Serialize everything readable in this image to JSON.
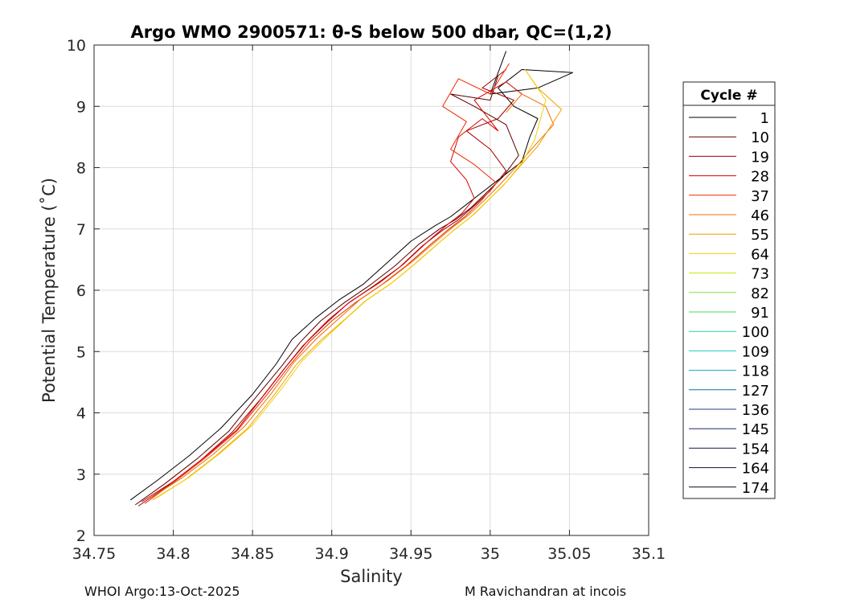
{
  "chart_data": {
    "type": "line",
    "title": "Argo WMO 2900571: θ-S below 500 dbar,  QC=(1,2)",
    "xlabel": "Salinity",
    "ylabel": "Potential Temperature (˚C)",
    "xlim": [
      34.75,
      35.1
    ],
    "ylim": [
      2,
      10
    ],
    "xticks": [
      34.75,
      34.8,
      34.85,
      34.9,
      34.95,
      35,
      35.05,
      35.1
    ],
    "xtick_labels": [
      "34.75",
      "34.8",
      "34.85",
      "34.9",
      "34.95",
      "35",
      "35.05",
      "35.1"
    ],
    "yticks": [
      2,
      3,
      4,
      5,
      6,
      7,
      8,
      9,
      10
    ],
    "ytick_labels": [
      "2",
      "3",
      "4",
      "5",
      "6",
      "7",
      "8",
      "9",
      "10"
    ],
    "grid": true,
    "legend_title": "Cycle #",
    "legend_position": "right",
    "legend": [
      {
        "label": "1",
        "color": "#000000"
      },
      {
        "label": "10",
        "color": "#5a0000"
      },
      {
        "label": "19",
        "color": "#a00000"
      },
      {
        "label": "28",
        "color": "#d40000"
      },
      {
        "label": "37",
        "color": "#f02800"
      },
      {
        "label": "46",
        "color": "#f07000"
      },
      {
        "label": "55",
        "color": "#f0a000"
      },
      {
        "label": "64",
        "color": "#f2d000"
      },
      {
        "label": "73",
        "color": "#c8e400"
      },
      {
        "label": "82",
        "color": "#80e040"
      },
      {
        "label": "91",
        "color": "#40d860"
      },
      {
        "label": "100",
        "color": "#20d8a0"
      },
      {
        "label": "109",
        "color": "#20c8c0"
      },
      {
        "label": "118",
        "color": "#10a8c0"
      },
      {
        "label": "127",
        "color": "#1070a0"
      },
      {
        "label": "136",
        "color": "#204080"
      },
      {
        "label": "145",
        "color": "#202870"
      },
      {
        "label": "154",
        "color": "#181850"
      },
      {
        "label": "164",
        "color": "#101038"
      },
      {
        "label": "174",
        "color": "#080820"
      }
    ],
    "series": [
      {
        "name": "1",
        "color": "#000000",
        "x": [
          34.773,
          34.79,
          34.81,
          34.83,
          34.85,
          34.865,
          34.875,
          34.89,
          34.905,
          34.92,
          34.935,
          34.95,
          34.965,
          34.975,
          34.985,
          34.995,
          35.005,
          35.02,
          35.025,
          35.03,
          35.015,
          35.005,
          35.02,
          35.052,
          35.03,
          35.0,
          35.01
        ],
        "y": [
          2.58,
          2.9,
          3.3,
          3.75,
          4.3,
          4.8,
          5.2,
          5.55,
          5.85,
          6.1,
          6.45,
          6.8,
          7.05,
          7.2,
          7.4,
          7.6,
          7.8,
          8.1,
          8.5,
          8.8,
          9.0,
          9.3,
          9.6,
          9.55,
          9.3,
          9.2,
          9.9
        ]
      },
      {
        "name": "10",
        "color": "#5a0000",
        "x": [
          34.776,
          34.795,
          34.815,
          34.835,
          34.852,
          34.868,
          34.88,
          34.893,
          34.908,
          34.925,
          34.94,
          34.955,
          34.968,
          34.978,
          34.988,
          34.998,
          35.008,
          35.018,
          35.01,
          34.99,
          34.975,
          35.0,
          35.005
        ],
        "y": [
          2.5,
          2.85,
          3.25,
          3.7,
          4.25,
          4.75,
          5.15,
          5.5,
          5.8,
          6.1,
          6.4,
          6.75,
          7.0,
          7.15,
          7.35,
          7.6,
          7.85,
          8.2,
          8.7,
          9.0,
          9.2,
          9.1,
          9.5
        ]
      },
      {
        "name": "19",
        "color": "#a00000",
        "x": [
          34.778,
          34.797,
          34.817,
          34.837,
          34.855,
          34.87,
          34.882,
          34.896,
          34.91,
          34.927,
          34.943,
          34.957,
          34.97,
          34.98,
          34.99,
          35.0,
          35.01,
          35.0,
          34.985,
          35.005,
          35.015,
          34.995,
          35.01
        ],
        "y": [
          2.48,
          2.82,
          3.22,
          3.68,
          4.22,
          4.72,
          5.1,
          5.45,
          5.78,
          6.08,
          6.38,
          6.72,
          6.98,
          7.15,
          7.38,
          7.62,
          7.95,
          8.3,
          8.6,
          8.8,
          9.1,
          9.3,
          9.6
        ]
      },
      {
        "name": "28",
        "color": "#d40000",
        "x": [
          34.78,
          34.8,
          34.82,
          34.84,
          34.857,
          34.872,
          34.885,
          34.898,
          34.912,
          34.93,
          34.945,
          34.96,
          34.972,
          34.982,
          34.99,
          34.985,
          34.975,
          34.98,
          34.995,
          35.005,
          34.99,
          35.01,
          35.02
        ],
        "y": [
          2.55,
          2.88,
          3.28,
          3.72,
          4.28,
          4.78,
          5.18,
          5.52,
          5.82,
          6.12,
          6.42,
          6.78,
          7.05,
          7.25,
          7.5,
          7.8,
          8.1,
          8.5,
          8.8,
          8.6,
          9.1,
          9.4,
          9.2
        ]
      },
      {
        "name": "37",
        "color": "#f02800",
        "x": [
          34.782,
          34.8,
          34.82,
          34.84,
          34.858,
          34.873,
          34.886,
          34.9,
          34.915,
          34.932,
          34.947,
          34.962,
          34.974,
          34.984,
          34.994,
          35.004,
          34.99,
          34.975,
          34.985,
          34.97,
          34.98,
          35.0,
          35.012
        ],
        "y": [
          2.52,
          2.86,
          3.26,
          3.7,
          4.26,
          4.76,
          5.16,
          5.5,
          5.8,
          6.1,
          6.4,
          6.74,
          7.0,
          7.2,
          7.45,
          7.75,
          8.05,
          8.3,
          8.75,
          9.0,
          9.45,
          9.2,
          9.7
        ]
      },
      {
        "name": "46",
        "color": "#f07000",
        "x": [
          34.785,
          34.805,
          34.825,
          34.845,
          34.862,
          34.876,
          34.89,
          34.905,
          34.918,
          34.935,
          34.95,
          34.964,
          34.976,
          34.986,
          34.996,
          35.006,
          35.016,
          35.026,
          35.04,
          35.035,
          35.02,
          35.01
        ],
        "y": [
          2.6,
          2.93,
          3.32,
          3.78,
          4.32,
          4.82,
          5.2,
          5.55,
          5.85,
          6.15,
          6.45,
          6.76,
          7.02,
          7.22,
          7.46,
          7.72,
          8.0,
          8.3,
          8.7,
          9.0,
          9.2,
          8.9
        ]
      },
      {
        "name": "55",
        "color": "#f0a000",
        "x": [
          34.787,
          34.807,
          34.827,
          34.847,
          34.864,
          34.878,
          34.893,
          34.908,
          34.921,
          34.938,
          34.952,
          34.966,
          34.978,
          34.988,
          34.998,
          35.008,
          35.018,
          35.03,
          35.045,
          35.03,
          35.022
        ],
        "y": [
          2.58,
          2.9,
          3.3,
          3.75,
          4.3,
          4.8,
          5.18,
          5.52,
          5.82,
          6.12,
          6.42,
          6.74,
          7.0,
          7.2,
          7.45,
          7.7,
          8.0,
          8.35,
          8.95,
          9.3,
          9.6
        ]
      },
      {
        "name": "64",
        "color": "#f2d000",
        "x": [
          34.79,
          34.81,
          34.83,
          34.85,
          34.867,
          34.881,
          34.896,
          34.91,
          34.923,
          34.94,
          34.954,
          34.968,
          34.98,
          34.99,
          35.0,
          35.01,
          35.02,
          35.028,
          35.035,
          35.022
        ],
        "y": [
          2.62,
          2.95,
          3.35,
          3.8,
          4.35,
          4.84,
          5.22,
          5.56,
          5.86,
          6.16,
          6.46,
          6.78,
          7.04,
          7.24,
          7.5,
          7.76,
          8.08,
          8.45,
          9.1,
          9.6
        ]
      }
    ]
  },
  "footer": {
    "left": "WHOI Argo:13-Oct-2025",
    "right": "M Ravichandran at incois"
  }
}
